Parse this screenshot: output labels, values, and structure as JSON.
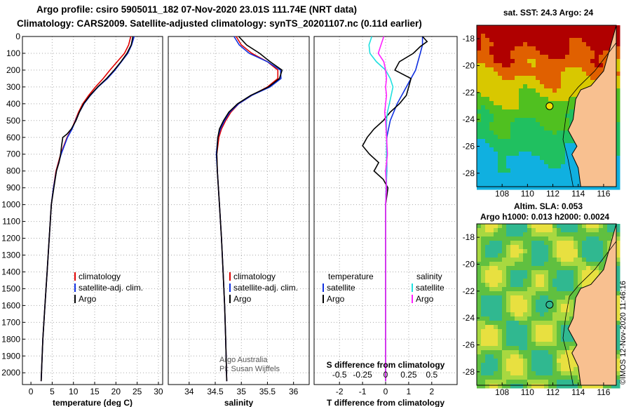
{
  "titles": {
    "line1": "Argo profile: csiro 5905011_182 07-Nov-2020 23.01S 111.74E (NRT data)",
    "line2": "Climatology: CARS2009. Satellite-adjusted climatology: synTS_20201107.nc (0.11d earlier)"
  },
  "watermark": "©IMOS 12-Nov-2020 11:46:16",
  "colors": {
    "climatology": "#e00000",
    "satellite": "#1030e0",
    "argo": "#000000",
    "sal_satellite": "#20e0e0",
    "sal_argo": "#ff20ff",
    "grid": "#aaaaaa",
    "land": "#f8c090"
  },
  "chart_data": [
    {
      "type": "line",
      "id": "temperature",
      "xlabel": "temperature (deg C)",
      "ylabel": "",
      "xlim": [
        -2,
        31
      ],
      "ylim": [
        2070,
        0
      ],
      "xticks": [
        "0",
        "5",
        "10",
        "15",
        "20",
        "25",
        "30"
      ],
      "yticks": [
        "0",
        "100",
        "200",
        "300",
        "400",
        "500",
        "600",
        "700",
        "800",
        "900",
        "1000",
        "1100",
        "1200",
        "1300",
        "1400",
        "1500",
        "1600",
        "1700",
        "1800",
        "1900",
        "2000"
      ],
      "legend": [
        "climatology",
        "satellite-adj. clim.",
        "Argo"
      ],
      "series": [
        {
          "name": "climatology",
          "color": "#e00000",
          "depth": [
            0,
            50,
            100,
            150,
            200,
            250,
            300,
            350,
            400,
            450,
            500,
            550,
            600,
            700,
            800,
            900,
            1000,
            1200,
            1400,
            1600,
            1800,
            2050
          ],
          "values": [
            23.5,
            23.0,
            22.0,
            20.3,
            18.6,
            17.0,
            15.2,
            13.6,
            12.2,
            11.2,
            10.4,
            9.6,
            8.5,
            7.0,
            5.9,
            5.3,
            4.8,
            4.3,
            3.8,
            3.3,
            2.8,
            2.4
          ]
        },
        {
          "name": "satellite-adj. clim.",
          "color": "#1030e0",
          "depth": [
            0,
            50,
            100,
            150,
            200,
            250,
            300,
            350,
            400,
            450,
            500,
            550,
            600,
            700,
            800,
            900,
            1000,
            1200,
            1400,
            1600,
            1800,
            2050
          ],
          "values": [
            24.3,
            23.7,
            22.8,
            21.3,
            19.8,
            18.0,
            15.8,
            14.0,
            12.5,
            11.4,
            10.5,
            9.7,
            8.6,
            7.1,
            6.0,
            5.3,
            4.8,
            4.3,
            3.8,
            3.3,
            2.8,
            2.4
          ]
        },
        {
          "name": "Argo",
          "color": "#000000",
          "depth": [
            0,
            50,
            100,
            150,
            200,
            250,
            300,
            350,
            400,
            450,
            500,
            550,
            580,
            600,
            650,
            700,
            750,
            800,
            900,
            1000,
            1200,
            1400,
            1600,
            1800,
            2050
          ],
          "values": [
            24.0,
            23.6,
            22.6,
            21.2,
            19.6,
            17.8,
            15.7,
            13.9,
            12.4,
            11.4,
            10.6,
            9.5,
            8.5,
            7.5,
            7.2,
            7.0,
            6.6,
            6.0,
            5.4,
            4.8,
            4.3,
            3.8,
            3.3,
            2.8,
            2.4
          ]
        }
      ]
    },
    {
      "type": "line",
      "id": "salinity",
      "xlabel": "salinity",
      "xlim": [
        33.6,
        36.3
      ],
      "ylim": [
        2070,
        0
      ],
      "xticks": [
        "34",
        "34.5",
        "35",
        "35.5",
        "36"
      ],
      "legend": [
        "climatology",
        "satellite-adj. clim.",
        "Argo"
      ],
      "credits": [
        "Argo Australia",
        "PI: Susan Wijffels"
      ],
      "series": [
        {
          "name": "climatology",
          "color": "#e00000",
          "depth": [
            0,
            50,
            100,
            150,
            200,
            250,
            300,
            350,
            400,
            450,
            500,
            550,
            600,
            700,
            800,
            900,
            1000,
            1200,
            1400,
            1600,
            1800,
            2050
          ],
          "values": [
            34.9,
            35.0,
            35.2,
            35.5,
            35.7,
            35.7,
            35.5,
            35.2,
            34.95,
            34.8,
            34.7,
            34.62,
            34.57,
            34.53,
            34.54,
            34.56,
            34.58,
            34.62,
            34.65,
            34.68,
            34.7,
            34.72
          ]
        },
        {
          "name": "satellite-adj. clim.",
          "color": "#1030e0",
          "depth": [
            0,
            50,
            100,
            150,
            200,
            250,
            300,
            350,
            400,
            450,
            500,
            550,
            600,
            700,
            800,
            900,
            1000,
            1200,
            1400,
            1600,
            1800,
            2050
          ],
          "values": [
            34.86,
            34.96,
            35.15,
            35.5,
            35.75,
            35.76,
            35.55,
            35.2,
            34.95,
            34.78,
            34.68,
            34.6,
            34.55,
            34.52,
            34.54,
            34.56,
            34.58,
            34.62,
            34.65,
            34.68,
            34.7,
            34.72
          ]
        },
        {
          "name": "Argo",
          "color": "#000000",
          "depth": [
            0,
            50,
            100,
            150,
            200,
            250,
            300,
            350,
            400,
            450,
            500,
            550,
            600,
            700,
            800,
            900,
            1000,
            1200,
            1400,
            1600,
            1800,
            2050
          ],
          "values": [
            34.95,
            35.1,
            35.35,
            35.55,
            35.78,
            35.73,
            35.52,
            35.18,
            34.93,
            34.76,
            34.66,
            34.58,
            34.55,
            34.53,
            34.54,
            34.56,
            34.58,
            34.62,
            34.65,
            34.68,
            34.7,
            34.72
          ]
        }
      ]
    },
    {
      "type": "line",
      "id": "differences",
      "xlabel": "T difference from climatology",
      "xlabel_top": "S difference from climatology",
      "xlim": [
        -3.1,
        3.1
      ],
      "ylim": [
        2070,
        0
      ],
      "xticks": [
        "-2",
        "-1",
        "0",
        "1",
        "2"
      ],
      "xticks_s": [
        "-0.5",
        "-0.25",
        "0",
        "0.25",
        "0.5"
      ],
      "legend_temperature": {
        "title": "temperature",
        "items": [
          "satellite",
          "Argo"
        ]
      },
      "legend_salinity": {
        "title": "salinity",
        "items": [
          "satellite",
          "Argo"
        ]
      },
      "series": [
        {
          "name": "T satellite",
          "color": "#1030e0",
          "depth": [
            0,
            50,
            100,
            150,
            200,
            300,
            400,
            500,
            600,
            700,
            800,
            1000,
            1500,
            2050
          ],
          "values": [
            1.6,
            1.6,
            1.5,
            1.4,
            1.3,
            0.9,
            0.5,
            0.2,
            0.05,
            0.05,
            0.05,
            0.0,
            0.0,
            0.0
          ]
        },
        {
          "name": "T Argo",
          "color": "#000000",
          "depth": [
            0,
            30,
            60,
            100,
            150,
            200,
            250,
            300,
            350,
            400,
            450,
            500,
            550,
            600,
            650,
            700,
            750,
            800,
            850,
            900,
            1000,
            1500,
            2050
          ],
          "values": [
            1.6,
            1.8,
            1.5,
            1.2,
            0.6,
            0.4,
            1.1,
            1.0,
            0.9,
            0.6,
            0.2,
            -0.1,
            -0.5,
            -0.8,
            -1.0,
            -0.7,
            -0.3,
            -0.5,
            -0.1,
            0.1,
            0.0,
            0.0,
            0.0
          ]
        },
        {
          "name": "S satellite",
          "color": "#20e0e0",
          "depth": [
            0,
            50,
            100,
            150,
            200,
            250,
            300,
            350,
            400,
            450,
            500,
            600,
            700,
            800,
            900,
            1000,
            1500,
            2050
          ],
          "values": [
            -0.15,
            -0.18,
            -0.17,
            -0.1,
            0.0,
            0.05,
            0.08,
            0.06,
            0.04,
            0.02,
            0.01,
            0.01,
            0.01,
            0.01,
            0.01,
            0.0,
            0.0,
            0.0
          ]
        },
        {
          "name": "S Argo",
          "color": "#ff20ff",
          "depth": [
            0,
            50,
            100,
            150,
            200,
            250,
            300,
            350,
            400,
            450,
            500,
            600,
            700,
            800,
            900,
            1000,
            1500,
            2050
          ],
          "values": [
            -0.02,
            -0.05,
            -0.08,
            -0.02,
            0.0,
            0.01,
            0.0,
            0.01,
            0.0,
            -0.01,
            0.0,
            0.01,
            0.02,
            0.0,
            0.01,
            0.0,
            0.0,
            0.0
          ]
        }
      ]
    },
    {
      "type": "heatmap",
      "id": "sst-map",
      "title": "sat. SST: 24.3  Argo: 24",
      "xlim": [
        106,
        117
      ],
      "ylim": [
        -29,
        -17
      ],
      "xticks": [
        "108",
        "110",
        "112",
        "114",
        "116"
      ],
      "yticks": [
        "-18",
        "-20",
        "-22",
        "-24",
        "-26",
        "-28"
      ],
      "float_position": [
        111.74,
        -23.01
      ]
    },
    {
      "type": "heatmap",
      "id": "sla-map",
      "title": "Altim. SLA: 0.053",
      "subtitle": "Argo h1000: 0.013  h2000: 0.0024",
      "xlim": [
        106,
        117
      ],
      "ylim": [
        -29,
        -17
      ],
      "xticks": [
        "108",
        "110",
        "112",
        "114",
        "116"
      ],
      "yticks": [
        "-18",
        "-20",
        "-22",
        "-24",
        "-26",
        "-28"
      ],
      "float_position": [
        111.74,
        -23.01
      ]
    }
  ]
}
